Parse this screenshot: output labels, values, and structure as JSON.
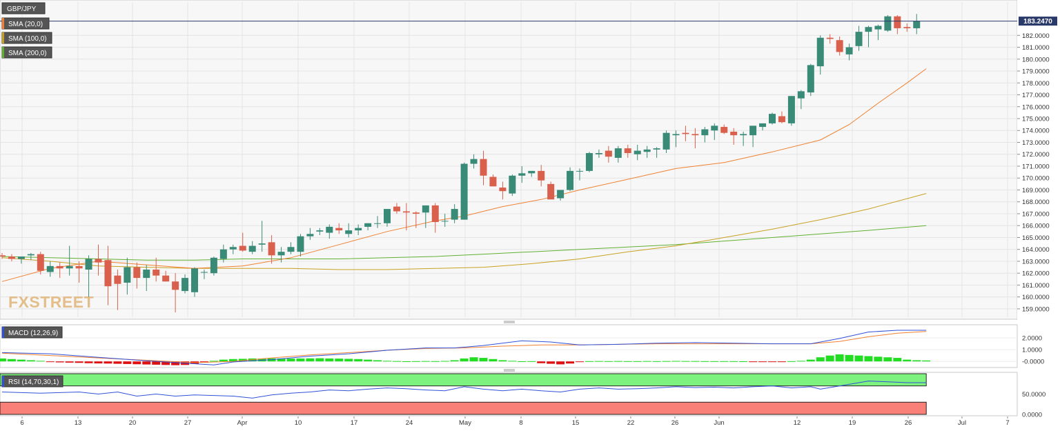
{
  "instrument": "GBP/JPY",
  "current_price_label": "183.2470",
  "watermark": "FXSTREET",
  "legend": [
    {
      "label": "SMA (20,0)",
      "color": "#f08030"
    },
    {
      "label": "SMA (100,0)",
      "color": "#c8a020"
    },
    {
      "label": "SMA (200,0)",
      "color": "#60b030"
    }
  ],
  "colors": {
    "up": "#3a8a78",
    "down": "#d8604c",
    "macd_line": "#3050d8",
    "signal_line": "#f08030",
    "rsi_line": "#3050d8"
  },
  "macd_label": "MACD (12,26,9)",
  "rsi_label": "RSI (14,70,30,1)",
  "chart_data": [
    {
      "type": "candlestick",
      "title": "GBP/JPY",
      "x_labels": [
        "6",
        "13",
        "20",
        "27",
        "Apr",
        "10",
        "17",
        "24",
        "May",
        "8",
        "15",
        "22",
        "26",
        "Jun",
        "12",
        "19",
        "26",
        "Jul",
        "7"
      ],
      "ylim": [
        158.3,
        184.8
      ],
      "y_ticks": [
        "159.0000",
        "160.0000",
        "161.0000",
        "162.0000",
        "163.0000",
        "164.0000",
        "165.0000",
        "166.0000",
        "167.0000",
        "168.0000",
        "169.0000",
        "170.0000",
        "171.0000",
        "172.0000",
        "173.0000",
        "174.0000",
        "175.0000",
        "176.0000",
        "177.0000",
        "178.0000",
        "179.0000",
        "180.0000",
        "181.0000",
        "182.0000"
      ],
      "grid": true,
      "ohlc": [
        [
          163.5,
          163.7,
          163.2,
          163.4
        ],
        [
          163.4,
          163.6,
          163.0,
          163.2
        ],
        [
          163.2,
          163.4,
          162.8,
          163.4
        ],
        [
          163.5,
          163.7,
          163.1,
          163.6
        ],
        [
          163.6,
          163.8,
          161.9,
          162.2
        ],
        [
          162.1,
          163.0,
          161.7,
          162.6
        ],
        [
          162.6,
          162.9,
          161.6,
          162.4
        ],
        [
          162.4,
          164.3,
          161.8,
          162.6
        ],
        [
          162.6,
          163.0,
          161.2,
          162.4
        ],
        [
          162.3,
          163.5,
          160.0,
          163.2
        ],
        [
          163.2,
          164.4,
          161.8,
          162.9
        ],
        [
          163.1,
          164.3,
          159.3,
          160.9
        ],
        [
          161.8,
          162.3,
          158.9,
          161.1
        ],
        [
          161.2,
          163.3,
          160.2,
          162.5
        ],
        [
          162.5,
          162.9,
          160.7,
          161.6
        ],
        [
          161.6,
          162.7,
          160.5,
          162.3
        ],
        [
          162.3,
          163.3,
          161.3,
          161.8
        ],
        [
          161.8,
          162.2,
          161.3,
          161.3
        ],
        [
          161.3,
          162.0,
          158.7,
          160.6
        ],
        [
          160.5,
          161.9,
          160.3,
          161.6
        ],
        [
          160.4,
          162.5,
          160.0,
          162.4
        ],
        [
          162.1,
          162.3,
          161.5,
          162.1
        ],
        [
          162.0,
          163.4,
          161.8,
          163.3
        ],
        [
          163.2,
          164.4,
          162.9,
          164.0
        ],
        [
          164.0,
          164.4,
          163.6,
          164.2
        ],
        [
          164.3,
          165.4,
          163.8,
          163.9
        ],
        [
          163.8,
          164.7,
          163.6,
          164.3
        ],
        [
          164.4,
          166.4,
          163.8,
          164.5
        ],
        [
          164.6,
          165.2,
          162.8,
          163.5
        ],
        [
          163.5,
          164.2,
          162.9,
          163.8
        ],
        [
          163.8,
          164.6,
          163.6,
          164.2
        ],
        [
          163.8,
          165.3,
          163.4,
          165.1
        ],
        [
          165.1,
          165.8,
          164.8,
          165.3
        ],
        [
          165.5,
          165.8,
          165.2,
          165.6
        ],
        [
          165.4,
          166.1,
          164.9,
          165.9
        ],
        [
          165.8,
          166.2,
          165.3,
          165.6
        ],
        [
          165.3,
          166.2,
          165.0,
          165.6
        ],
        [
          165.6,
          166.1,
          165.2,
          165.8
        ],
        [
          165.9,
          166.2,
          165.6,
          166.2
        ],
        [
          166.2,
          166.8,
          165.8,
          166.2
        ],
        [
          166.2,
          167.4,
          165.9,
          167.4
        ],
        [
          167.6,
          167.9,
          167.0,
          167.2
        ],
        [
          167.2,
          167.9,
          165.6,
          167.1
        ],
        [
          167.1,
          167.2,
          165.8,
          167.0
        ],
        [
          167.1,
          167.6,
          165.8,
          167.7
        ],
        [
          167.7,
          167.9,
          165.4,
          166.3
        ],
        [
          166.4,
          167.0,
          165.9,
          166.4
        ],
        [
          166.5,
          167.8,
          166.2,
          167.4
        ],
        [
          166.5,
          171.3,
          166.5,
          171.2
        ],
        [
          171.2,
          172.0,
          170.8,
          171.6
        ],
        [
          171.6,
          172.3,
          169.4,
          170.2
        ],
        [
          170.1,
          170.3,
          169.3,
          169.3
        ],
        [
          169.2,
          169.7,
          168.2,
          168.9
        ],
        [
          168.7,
          170.3,
          168.5,
          170.2
        ],
        [
          170.2,
          171.0,
          169.6,
          170.4
        ],
        [
          170.4,
          170.6,
          170.1,
          170.6
        ],
        [
          170.6,
          171.1,
          169.3,
          169.8
        ],
        [
          169.5,
          169.7,
          168.3,
          168.2
        ],
        [
          168.3,
          169.0,
          168.1,
          169.0
        ],
        [
          169.0,
          170.9,
          168.9,
          170.6
        ],
        [
          170.6,
          170.8,
          169.8,
          170.6
        ],
        [
          170.6,
          172.2,
          170.5,
          172.1
        ],
        [
          172.0,
          172.4,
          171.7,
          172.1
        ],
        [
          172.3,
          172.7,
          171.3,
          171.8
        ],
        [
          171.7,
          172.7,
          171.3,
          172.5
        ],
        [
          172.5,
          172.8,
          171.7,
          172.1
        ],
        [
          172.0,
          172.8,
          171.5,
          172.3
        ],
        [
          172.2,
          172.7,
          171.7,
          172.4
        ],
        [
          172.4,
          172.6,
          171.7,
          172.5
        ],
        [
          172.4,
          174.0,
          172.1,
          173.8
        ],
        [
          173.6,
          174.0,
          172.6,
          173.7
        ],
        [
          173.8,
          174.4,
          173.1,
          173.7
        ],
        [
          173.7,
          174.2,
          172.5,
          173.6
        ],
        [
          173.6,
          174.3,
          173.0,
          174.1
        ],
        [
          174.0,
          174.6,
          173.2,
          174.4
        ],
        [
          174.3,
          174.5,
          173.7,
          173.8
        ],
        [
          173.9,
          174.2,
          172.8,
          173.6
        ],
        [
          173.6,
          173.9,
          172.7,
          173.7
        ],
        [
          173.6,
          174.4,
          172.6,
          174.4
        ],
        [
          174.3,
          174.5,
          174.0,
          174.6
        ],
        [
          174.6,
          175.5,
          174.5,
          175.4
        ],
        [
          175.2,
          175.6,
          174.6,
          174.7
        ],
        [
          174.6,
          176.9,
          174.4,
          176.9
        ],
        [
          176.7,
          177.4,
          175.8,
          177.3
        ],
        [
          177.2,
          179.6,
          176.9,
          179.5
        ],
        [
          179.4,
          182.0,
          178.7,
          181.8
        ],
        [
          181.8,
          182.1,
          181.3,
          181.7
        ],
        [
          181.6,
          181.9,
          180.3,
          180.6
        ],
        [
          180.4,
          181.3,
          179.9,
          181.0
        ],
        [
          181.1,
          182.8,
          180.7,
          182.3
        ],
        [
          182.3,
          182.8,
          181.0,
          182.7
        ],
        [
          182.5,
          182.9,
          181.6,
          182.8
        ],
        [
          182.4,
          183.7,
          182.3,
          183.6
        ],
        [
          183.6,
          183.7,
          182.1,
          182.6
        ],
        [
          182.7,
          183.0,
          182.3,
          182.6
        ],
        [
          182.6,
          183.8,
          182.1,
          183.2
        ]
      ],
      "sma20": [
        [
          0,
          161.3
        ],
        [
          5,
          162.4
        ],
        [
          10,
          163.0
        ],
        [
          15,
          162.7
        ],
        [
          20,
          162.4
        ],
        [
          25,
          162.6
        ],
        [
          30,
          163.3
        ],
        [
          35,
          164.4
        ],
        [
          40,
          165.5
        ],
        [
          45,
          166.4
        ],
        [
          48,
          166.8
        ],
        [
          52,
          167.6
        ],
        [
          56,
          168.2
        ],
        [
          60,
          169.0
        ],
        [
          65,
          169.9
        ],
        [
          70,
          170.8
        ],
        [
          75,
          171.3
        ],
        [
          80,
          172.2
        ],
        [
          85,
          173.2
        ],
        [
          88,
          174.5
        ],
        [
          91,
          176.3
        ],
        [
          94,
          178.0
        ],
        [
          96,
          179.2
        ]
      ],
      "sma100": [
        [
          0,
          163.3
        ],
        [
          5,
          163.0
        ],
        [
          10,
          162.6
        ],
        [
          15,
          162.5
        ],
        [
          20,
          162.4
        ],
        [
          25,
          162.4
        ],
        [
          30,
          162.4
        ],
        [
          35,
          162.3
        ],
        [
          40,
          162.3
        ],
        [
          45,
          162.4
        ],
        [
          50,
          162.5
        ],
        [
          55,
          162.8
        ],
        [
          60,
          163.2
        ],
        [
          65,
          163.8
        ],
        [
          70,
          164.3
        ],
        [
          75,
          165.0
        ],
        [
          80,
          165.7
        ],
        [
          85,
          166.5
        ],
        [
          90,
          167.4
        ],
        [
          96,
          168.7
        ]
      ],
      "sma200": [
        [
          0,
          163.4
        ],
        [
          5,
          163.3
        ],
        [
          10,
          163.2
        ],
        [
          15,
          163.1
        ],
        [
          20,
          163.1
        ],
        [
          25,
          163.2
        ],
        [
          30,
          163.2
        ],
        [
          35,
          163.2
        ],
        [
          40,
          163.3
        ],
        [
          45,
          163.4
        ],
        [
          50,
          163.6
        ],
        [
          55,
          163.8
        ],
        [
          60,
          164.0
        ],
        [
          65,
          164.2
        ],
        [
          70,
          164.4
        ],
        [
          75,
          164.7
        ],
        [
          80,
          165.0
        ],
        [
          85,
          165.3
        ],
        [
          90,
          165.6
        ],
        [
          96,
          166.0
        ]
      ]
    },
    {
      "type": "line",
      "title": "MACD (12,26,9)",
      "ylim": [
        -0.4,
        3.0
      ],
      "y_ticks": [
        "2.0000",
        "1.0000",
        "-0.0000"
      ],
      "macd": [
        [
          0,
          0.75
        ],
        [
          5,
          0.65
        ],
        [
          10,
          0.35
        ],
        [
          15,
          0.05
        ],
        [
          19,
          -0.15
        ],
        [
          22,
          -0.3
        ],
        [
          24,
          -0.05
        ],
        [
          28,
          0.15
        ],
        [
          32,
          0.45
        ],
        [
          36,
          0.65
        ],
        [
          40,
          0.95
        ],
        [
          44,
          1.15
        ],
        [
          47,
          1.15
        ],
        [
          50,
          1.35
        ],
        [
          54,
          1.75
        ],
        [
          57,
          1.65
        ],
        [
          60,
          1.4
        ],
        [
          64,
          1.45
        ],
        [
          68,
          1.55
        ],
        [
          72,
          1.6
        ],
        [
          76,
          1.55
        ],
        [
          80,
          1.5
        ],
        [
          84,
          1.5
        ],
        [
          87,
          1.95
        ],
        [
          90,
          2.5
        ],
        [
          93,
          2.65
        ],
        [
          96,
          2.65
        ]
      ],
      "signal": [
        [
          0,
          0.7
        ],
        [
          5,
          0.5
        ],
        [
          10,
          0.3
        ],
        [
          15,
          0.1
        ],
        [
          20,
          -0.1
        ],
        [
          24,
          0.0
        ],
        [
          28,
          0.3
        ],
        [
          32,
          0.55
        ],
        [
          36,
          0.75
        ],
        [
          40,
          0.95
        ],
        [
          44,
          1.1
        ],
        [
          48,
          1.15
        ],
        [
          52,
          1.3
        ],
        [
          56,
          1.4
        ],
        [
          60,
          1.4
        ],
        [
          64,
          1.45
        ],
        [
          68,
          1.5
        ],
        [
          72,
          1.5
        ],
        [
          76,
          1.5
        ],
        [
          80,
          1.5
        ],
        [
          84,
          1.5
        ],
        [
          87,
          1.7
        ],
        [
          90,
          2.1
        ],
        [
          93,
          2.4
        ],
        [
          96,
          2.55
        ]
      ],
      "histogram": [
        0.25,
        0.2,
        0.15,
        0.1,
        0.05,
        -0.05,
        -0.08,
        -0.1,
        -0.12,
        -0.15,
        -0.17,
        -0.18,
        -0.2,
        -0.22,
        -0.24,
        -0.26,
        -0.28,
        -0.3,
        -0.32,
        -0.3,
        -0.2,
        -0.1,
        0.05,
        0.15,
        0.2,
        0.22,
        0.25,
        0.24,
        0.26,
        0.25,
        0.24,
        0.25,
        0.26,
        0.27,
        0.25,
        0.24,
        0.22,
        0.2,
        0.15,
        0.1,
        0.05,
        0.03,
        0.01,
        0.02,
        0.03,
        0.02,
        0.04,
        0.1,
        0.25,
        0.35,
        0.3,
        0.2,
        0.1,
        0.05,
        0.01,
        0.02,
        -0.15,
        -0.2,
        -0.25,
        -0.18,
        -0.05,
        0.02,
        0.03,
        0.02,
        0.03,
        0.02,
        0.02,
        0.03,
        0.02,
        0.03,
        0.04,
        0.03,
        0.03,
        0.02,
        0.02,
        0.02,
        0.02,
        0.01,
        -0.02,
        -0.03,
        -0.02,
        -0.02,
        0.02,
        0.05,
        0.15,
        0.35,
        0.5,
        0.6,
        0.55,
        0.5,
        0.45,
        0.4,
        0.35,
        0.3,
        0.15,
        0.1,
        0.08
      ]
    },
    {
      "type": "line",
      "title": "RSI (14,70,30,1)",
      "ylim": [
        0,
        100
      ],
      "y_ticks": [
        "50.0000",
        "0.0000"
      ],
      "overbought": 70,
      "oversold": 30,
      "rsi": [
        [
          0,
          55
        ],
        [
          4,
          52
        ],
        [
          8,
          55
        ],
        [
          10,
          50
        ],
        [
          12,
          55
        ],
        [
          14,
          45
        ],
        [
          16,
          50
        ],
        [
          18,
          45
        ],
        [
          20,
          48
        ],
        [
          24,
          45
        ],
        [
          26,
          40
        ],
        [
          28,
          48
        ],
        [
          30,
          52
        ],
        [
          32,
          55
        ],
        [
          34,
          60
        ],
        [
          36,
          58
        ],
        [
          38,
          62
        ],
        [
          40,
          65
        ],
        [
          42,
          63
        ],
        [
          44,
          60
        ],
        [
          46,
          58
        ],
        [
          48,
          68
        ],
        [
          50,
          62
        ],
        [
          52,
          58
        ],
        [
          54,
          62
        ],
        [
          56,
          58
        ],
        [
          58,
          55
        ],
        [
          60,
          62
        ],
        [
          62,
          65
        ],
        [
          64,
          62
        ],
        [
          66,
          63
        ],
        [
          68,
          65
        ],
        [
          70,
          68
        ],
        [
          72,
          66
        ],
        [
          74,
          67
        ],
        [
          76,
          65
        ],
        [
          78,
          68
        ],
        [
          80,
          70
        ],
        [
          82,
          65
        ],
        [
          84,
          68
        ],
        [
          85,
          62
        ],
        [
          87,
          70
        ],
        [
          89,
          78
        ],
        [
          90,
          82
        ],
        [
          92,
          80
        ],
        [
          94,
          78
        ],
        [
          96,
          78
        ]
      ]
    }
  ]
}
